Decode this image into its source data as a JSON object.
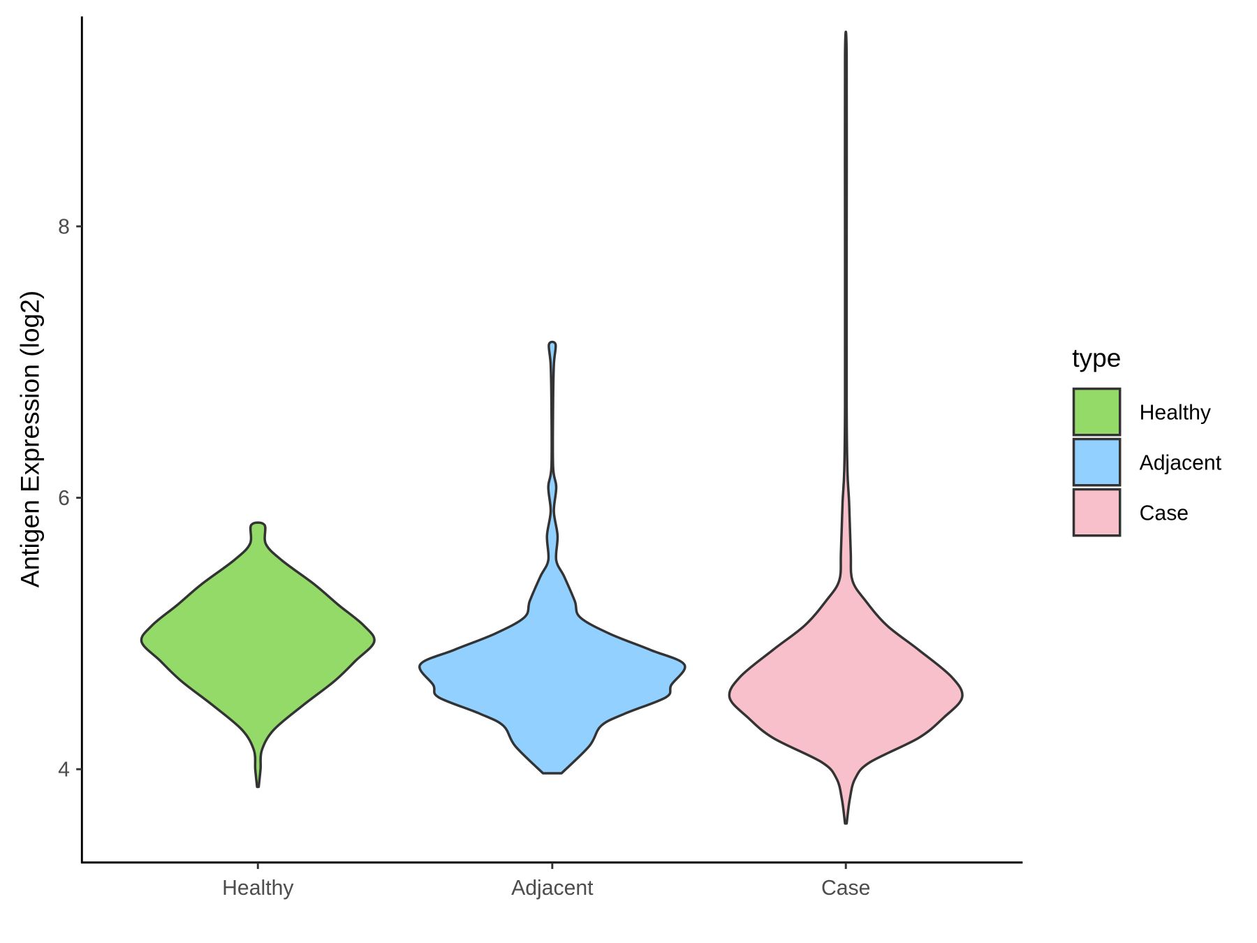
{
  "chart_data": {
    "type": "violin",
    "title": "",
    "xlabel": "",
    "ylabel": "Antigen Expression (log2)",
    "ylim": [
      3.3,
      9.5
    ],
    "yticks": [
      4,
      6,
      8
    ],
    "ytick_labels": [
      "4",
      "6",
      "8"
    ],
    "categories": [
      "Healthy",
      "Adjacent",
      "Case"
    ],
    "grid": false,
    "legend": {
      "title": "type",
      "placement": "right",
      "entries": [
        "Healthy",
        "Adjacent",
        "Case"
      ]
    },
    "series": [
      {
        "name": "Healthy",
        "color": "#93DA69",
        "min": 3.87,
        "max": 5.8,
        "profile": [
          [
            3.87,
            0
          ],
          [
            4.0,
            0.02
          ],
          [
            4.14,
            0.03
          ],
          [
            4.29,
            0.12
          ],
          [
            4.47,
            0.34
          ],
          [
            4.65,
            0.58
          ],
          [
            4.8,
            0.74
          ],
          [
            4.94,
            0.88
          ],
          [
            5.06,
            0.8
          ],
          [
            5.21,
            0.61
          ],
          [
            5.36,
            0.43
          ],
          [
            5.54,
            0.18
          ],
          [
            5.66,
            0.06
          ],
          [
            5.8,
            0.05
          ]
        ]
      },
      {
        "name": "Adjacent",
        "color": "#92D1FF",
        "min": 3.97,
        "max": 7.13,
        "profile": [
          [
            3.97,
            0.07
          ],
          [
            4.17,
            0.28
          ],
          [
            4.32,
            0.37
          ],
          [
            4.41,
            0.55
          ],
          [
            4.53,
            0.86
          ],
          [
            4.62,
            0.9
          ],
          [
            4.77,
            1.0
          ],
          [
            4.88,
            0.74
          ],
          [
            5.0,
            0.43
          ],
          [
            5.12,
            0.21
          ],
          [
            5.24,
            0.17
          ],
          [
            5.42,
            0.09
          ],
          [
            5.54,
            0.03
          ],
          [
            5.72,
            0.04
          ],
          [
            5.9,
            0.012
          ],
          [
            6.08,
            0.03
          ],
          [
            6.23,
            0.006
          ],
          [
            6.68,
            0.006
          ],
          [
            6.98,
            0.012
          ],
          [
            7.13,
            0.025
          ]
        ]
      },
      {
        "name": "Case",
        "color": "#F7C0CB",
        "min": 3.6,
        "max": 9.26,
        "profile": [
          [
            3.6,
            0.006
          ],
          [
            3.78,
            0.03
          ],
          [
            3.93,
            0.07
          ],
          [
            4.05,
            0.18
          ],
          [
            4.23,
            0.55
          ],
          [
            4.38,
            0.74
          ],
          [
            4.53,
            0.88
          ],
          [
            4.68,
            0.8
          ],
          [
            4.88,
            0.55
          ],
          [
            5.06,
            0.31
          ],
          [
            5.24,
            0.15
          ],
          [
            5.39,
            0.05
          ],
          [
            5.6,
            0.037
          ],
          [
            5.96,
            0.025
          ],
          [
            6.2,
            0.012
          ],
          [
            6.68,
            0.006
          ],
          [
            7.87,
            0.006
          ],
          [
            9.26,
            0.006
          ]
        ]
      }
    ]
  }
}
